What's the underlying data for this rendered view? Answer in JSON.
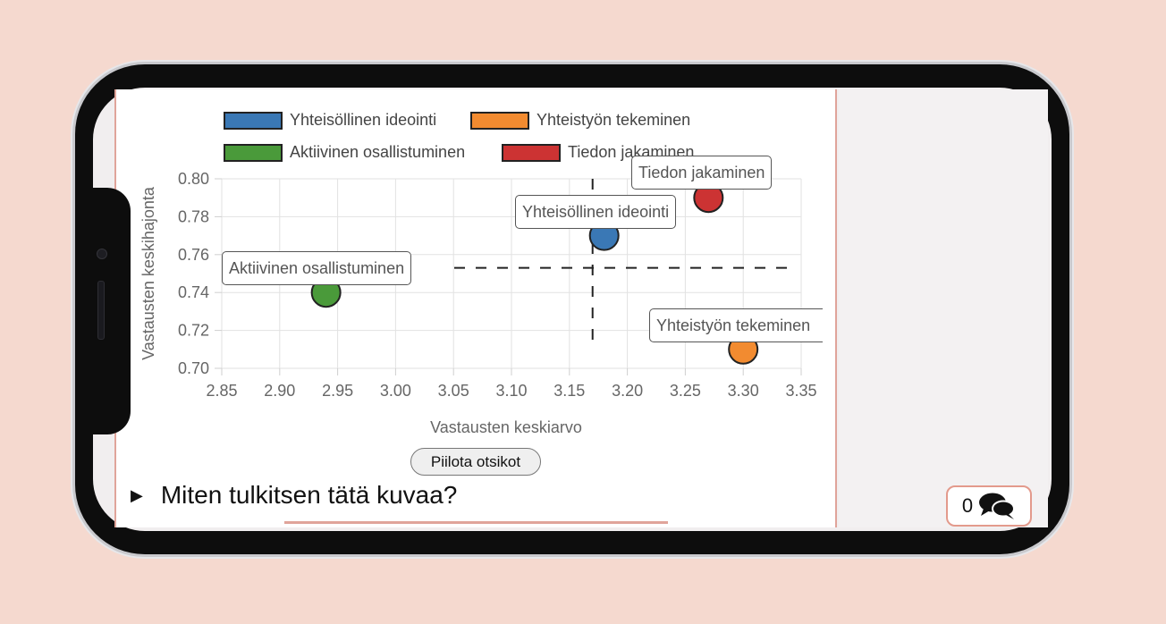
{
  "legend": [
    {
      "label": "Yhteisöllinen ideointi",
      "color": "#3a78b5"
    },
    {
      "label": "Yhteistyön tekeminen",
      "color": "#f28b30"
    },
    {
      "label": "Aktiivinen osallistuminen",
      "color": "#4a9a3a"
    },
    {
      "label": "Tiedon jakaminen",
      "color": "#cc3333"
    }
  ],
  "chart_data": {
    "type": "scatter",
    "xlabel": "Vastausten keskiarvo",
    "ylabel": "Vastausten keskihajonta",
    "xlim": [
      2.85,
      3.35
    ],
    "ylim": [
      0.7,
      0.8
    ],
    "x_ticks": [
      "2.85",
      "2.90",
      "2.95",
      "3.00",
      "3.05",
      "3.10",
      "3.15",
      "3.20",
      "3.25",
      "3.30",
      "3.35"
    ],
    "y_ticks": [
      "0.80",
      "0.78",
      "0.76",
      "0.74",
      "0.72",
      "0.70"
    ],
    "grid": true,
    "reference_lines": {
      "x": 3.17,
      "y": 0.753,
      "style": "dashed"
    },
    "points": [
      {
        "name": "Yhteisöllinen ideointi",
        "x": 3.18,
        "y": 0.77,
        "color": "#3a78b5"
      },
      {
        "name": "Yhteistyön tekeminen",
        "x": 3.3,
        "y": 0.71,
        "color": "#f28b30"
      },
      {
        "name": "Aktiivinen osallistuminen",
        "x": 2.94,
        "y": 0.74,
        "color": "#4a9a3a"
      },
      {
        "name": "Tiedon jakaminen",
        "x": 3.27,
        "y": 0.79,
        "color": "#cc3333"
      }
    ],
    "callouts": [
      "Tiedon jakaminen",
      "Yhteisöllinen ideointi",
      "Aktiivinen osallistuminen",
      "Yhteistyön tekeminen"
    ]
  },
  "toggle_button": "Piilota otsikot",
  "disclosure_label": "Miten tulkitsen tätä kuvaa?",
  "comments": {
    "count": "0",
    "icon": "comments-icon"
  }
}
